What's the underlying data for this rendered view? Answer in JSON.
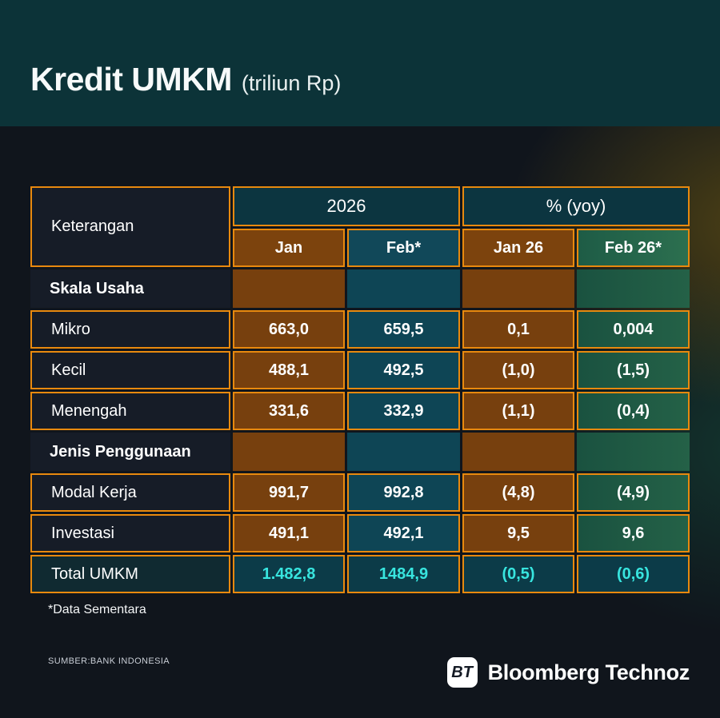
{
  "header": {
    "title": "Kredit UMKM",
    "subtitle": "(triliun Rp)"
  },
  "table": {
    "corner_label": "Keterangan",
    "col_groups": [
      {
        "label": "2026"
      },
      {
        "label": "% (yoy)"
      }
    ],
    "columns": [
      "Jan",
      "Feb*",
      "Jan 26",
      "Feb 26*"
    ],
    "sections": [
      {
        "label": "Skala Usaha",
        "rows": [
          {
            "label": "Mikro",
            "values": [
              "663,0",
              "659,5",
              "0,1",
              "0,004"
            ]
          },
          {
            "label": "Kecil",
            "values": [
              "488,1",
              "492,5",
              "(1,0)",
              "(1,5)"
            ]
          },
          {
            "label": "Menengah",
            "values": [
              "331,6",
              "332,9",
              "(1,1)",
              "(0,4)"
            ]
          }
        ]
      },
      {
        "label": "Jenis Penggunaan",
        "rows": [
          {
            "label": "Modal Kerja",
            "values": [
              "991,7",
              "992,8",
              "(4,8)",
              "(4,9)"
            ]
          },
          {
            "label": "Investasi",
            "values": [
              "491,1",
              "492,1",
              "9,5",
              "9,6"
            ]
          }
        ]
      }
    ],
    "total_row": {
      "label": "Total UMKM",
      "values": [
        "1.482,8",
        "1484,9",
        "(0,5)",
        "(0,6)"
      ]
    }
  },
  "footnote": "*Data Sementara",
  "source": "SUMBER:BANK INDONESIA",
  "logo": {
    "badge": "BT",
    "name": "Bloomberg Technoz"
  },
  "colors": {
    "band_teal": "#0C3338",
    "background": "#10151C",
    "border_orange": "#E8890E",
    "cell_brown": "#77400E",
    "cell_teal": "#0E4555",
    "cell_green": "#1A5240",
    "label_navy": "#161C27",
    "total_cyan": "#38E5DF"
  },
  "chart_data": {
    "type": "table",
    "title": "Kredit UMKM (triliun Rp)",
    "columns": [
      "Keterangan",
      "2026 Jan",
      "2026 Feb*",
      "% (yoy) Jan 26",
      "% (yoy) Feb 26*"
    ],
    "rows": [
      [
        "Skala Usaha",
        "",
        "",
        "",
        ""
      ],
      [
        "Mikro",
        "663,0",
        "659,5",
        "0,1",
        "0,004"
      ],
      [
        "Kecil",
        "488,1",
        "492,5",
        "(1,0)",
        "(1,5)"
      ],
      [
        "Menengah",
        "331,6",
        "332,9",
        "(1,1)",
        "(0,4)"
      ],
      [
        "Jenis Penggunaan",
        "",
        "",
        "",
        ""
      ],
      [
        "Modal Kerja",
        "991,7",
        "992,8",
        "(4,8)",
        "(4,9)"
      ],
      [
        "Investasi",
        "491,1",
        "492,1",
        "9,5",
        "9,6"
      ],
      [
        "Total UMKM",
        "1.482,8",
        "1484,9",
        "(0,5)",
        "(0,6)"
      ]
    ],
    "footnote": "*Data Sementara",
    "source": "SUMBER:BANK INDONESIA"
  }
}
